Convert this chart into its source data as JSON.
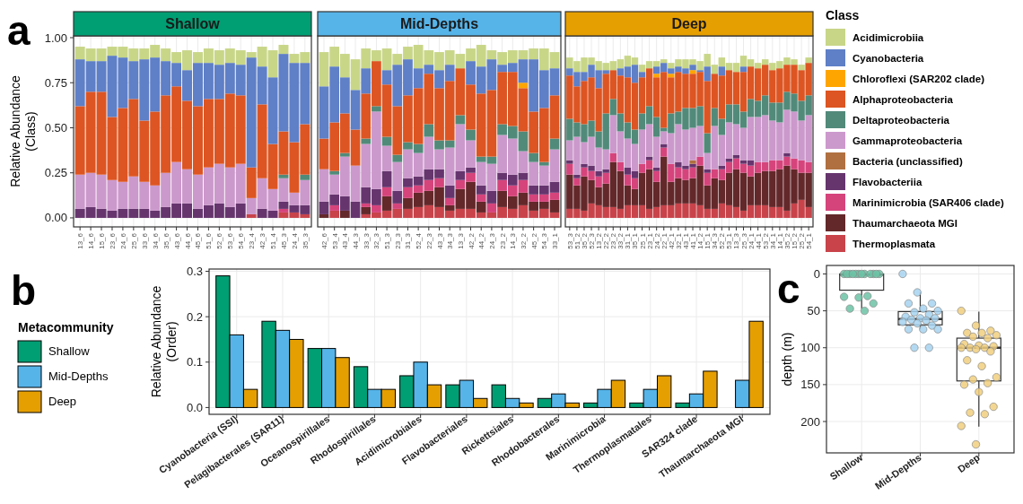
{
  "chart_data": [
    {
      "type": "bar",
      "stacked": true,
      "title": "Shallow",
      "ylabel": "Relative Abundance\n(Class)",
      "annotations": [
        "a"
      ],
      "grid": true,
      "legend": false,
      "categories": [
        "13_6",
        "14_6",
        "15_6",
        "23_6",
        "24_6",
        "25_6",
        "33_6",
        "34_6",
        "35_6",
        "43_6",
        "44_6",
        "45_6",
        "51_6",
        "52_6",
        "53_6",
        "54_6",
        "23_4",
        "42_3",
        "51_4",
        "45_3",
        "24_4",
        "35_3"
      ],
      "ylim": [
        -0.05,
        1.01
      ],
      "yticks": [
        {
          "value": 0,
          "label": "0.00"
        },
        {
          "value": 0.25,
          "label": "0.25"
        },
        {
          "value": 0.5,
          "label": "0.50"
        },
        {
          "value": 0.75,
          "label": "0.75"
        },
        {
          "value": 1,
          "label": "1.00"
        }
      ],
      "series": [
        {
          "color": "#c8434a",
          "values": [
            0,
            0,
            0,
            0,
            0,
            0,
            0,
            0,
            0,
            0,
            0,
            0,
            0,
            0,
            0,
            0,
            0.02,
            0,
            0,
            0.03,
            0.03,
            0.02
          ]
        },
        {
          "color": "#63282a",
          "values": [
            0,
            0,
            0,
            0,
            0,
            0,
            0,
            0,
            0,
            0,
            0,
            0,
            0,
            0,
            0,
            0,
            0,
            0,
            0,
            0,
            0,
            0
          ]
        },
        {
          "color": "#d6447c",
          "values": [
            0,
            0,
            0,
            0,
            0,
            0,
            0,
            0,
            0,
            0,
            0,
            0,
            0,
            0,
            0,
            0,
            0,
            0,
            0,
            0.02,
            0,
            0
          ]
        },
        {
          "color": "#66356e",
          "values": [
            0.05,
            0.06,
            0.05,
            0.04,
            0.05,
            0.05,
            0.05,
            0.04,
            0.06,
            0.08,
            0.08,
            0.05,
            0.07,
            0.08,
            0.06,
            0.08,
            0,
            0.05,
            0.04,
            0.04,
            0.04,
            0.05
          ]
        },
        {
          "color": "#b07040",
          "values": [
            0,
            0,
            0,
            0,
            0,
            0,
            0,
            0,
            0,
            0,
            0,
            0,
            0,
            0,
            0,
            0,
            0,
            0,
            0,
            0,
            0,
            0
          ]
        },
        {
          "color": "#cc99cc",
          "values": [
            0.19,
            0.19,
            0.19,
            0.17,
            0.15,
            0.18,
            0.15,
            0.14,
            0.19,
            0.23,
            0.19,
            0.19,
            0.21,
            0.22,
            0.22,
            0.22,
            0.09,
            0.17,
            0.12,
            0.13,
            0.07,
            0.14
          ]
        },
        {
          "color": "#528a7a",
          "values": [
            0,
            0,
            0,
            0,
            0,
            0,
            0,
            0,
            0,
            0,
            0,
            0,
            0,
            0,
            0,
            0,
            0,
            0,
            0,
            0.02,
            0,
            0.03
          ]
        },
        {
          "color": "#dd5522",
          "values": [
            0.38,
            0.45,
            0.46,
            0.35,
            0.41,
            0.43,
            0.34,
            0.41,
            0.43,
            0.42,
            0.38,
            0.38,
            0.38,
            0.36,
            0.41,
            0.38,
            0.17,
            0.41,
            0.25,
            0.24,
            0.28,
            0.28
          ]
        },
        {
          "color": "#ffa500",
          "values": [
            0,
            0,
            0,
            0,
            0,
            0,
            0,
            0,
            0,
            0,
            0,
            0,
            0,
            0,
            0,
            0,
            0,
            0,
            0,
            0,
            0,
            0
          ]
        },
        {
          "color": "#5f7fc7",
          "values": [
            0.26,
            0.17,
            0.17,
            0.34,
            0.28,
            0.21,
            0.34,
            0.3,
            0.19,
            0.13,
            0.17,
            0.24,
            0.2,
            0.19,
            0.17,
            0.17,
            0.61,
            0.21,
            0.37,
            0.43,
            0.44,
            0.34
          ]
        },
        {
          "color": "#c8d688",
          "values": [
            0.07,
            0.07,
            0.07,
            0.05,
            0.06,
            0.07,
            0.06,
            0.07,
            0.07,
            0.06,
            0.11,
            0.06,
            0.08,
            0.08,
            0.08,
            0.08,
            0.03,
            0.11,
            0.15,
            0.05,
            0.05,
            0.06
          ]
        }
      ]
    },
    {
      "type": "bar",
      "stacked": true,
      "title": "Mid-Depths",
      "grid": true,
      "legend": false,
      "tick_labels": "x",
      "categories": [
        "42_6",
        "53_4",
        "43_4",
        "44_3",
        "33_3",
        "32_3",
        "51_3",
        "23_3",
        "31_3",
        "52_4",
        "22_3",
        "43_3",
        "34_3",
        "13_3",
        "42_2",
        "44_2",
        "24_3",
        "23_2",
        "14_3",
        "32_2",
        "45_2",
        "54_3",
        "33_1"
      ],
      "ylim": [
        -0.05,
        1.01
      ],
      "yticks": [
        0,
        0.25,
        0.5,
        0.75,
        1
      ],
      "series": [
        {
          "color": "#c8434a",
          "values": [
            0,
            0.04,
            0,
            0,
            0.02,
            0.03,
            0.04,
            0.05,
            0.05,
            0.06,
            0.07,
            0.06,
            0.04,
            0.05,
            0.05,
            0.03,
            0.03,
            0.06,
            0.05,
            0.07,
            0.04,
            0.05,
            0.03
          ]
        },
        {
          "color": "#63282a",
          "values": [
            0.02,
            0,
            0.04,
            0,
            0.04,
            0,
            0.08,
            0,
            0.06,
            0.08,
            0.08,
            0.11,
            0.03,
            0.11,
            0.15,
            0.06,
            0,
            0.09,
            0.07,
            0.07,
            0.05,
            0.04,
            0.07
          ]
        },
        {
          "color": "#d6447c",
          "values": [
            0,
            0.03,
            0,
            0,
            0.02,
            0.04,
            0.05,
            0.03,
            0.06,
            0.04,
            0.06,
            0.05,
            0.04,
            0.05,
            0.05,
            0.04,
            0.05,
            0.06,
            0.06,
            0.07,
            0.04,
            0.04,
            0.04
          ]
        },
        {
          "color": "#66356e",
          "values": [
            0.07,
            0.06,
            0.08,
            0.09,
            0.09,
            0.09,
            0.09,
            0.07,
            0.05,
            0.05,
            0.06,
            0.05,
            0.07,
            0.05,
            0.03,
            0.05,
            0.07,
            0.04,
            0.06,
            0.04,
            0.05,
            0.05,
            0.06
          ]
        },
        {
          "color": "#b07040",
          "values": [
            0,
            0,
            0,
            0,
            0,
            0,
            0,
            0,
            0,
            0,
            0,
            0,
            0,
            0,
            0,
            0,
            0,
            0,
            0,
            0,
            0,
            0,
            0
          ]
        },
        {
          "color": "#cc99cc",
          "values": [
            0.18,
            0.11,
            0.22,
            0.2,
            0.24,
            0.43,
            0.14,
            0.16,
            0.16,
            0.13,
            0.18,
            0.11,
            0.21,
            0.26,
            0.15,
            0.13,
            0.15,
            0.21,
            0.2,
            0.12,
            0.13,
            0.11,
            0.18
          ]
        },
        {
          "color": "#528a7a",
          "values": [
            0,
            0.02,
            0.02,
            0,
            0.03,
            0.03,
            0.05,
            0.04,
            0.04,
            0.05,
            0.07,
            0.05,
            0.04,
            0.05,
            0.06,
            0.03,
            0.04,
            0.06,
            0.07,
            0.11,
            0.05,
            0.02,
            0.06
          ]
        },
        {
          "color": "#dd5522",
          "values": [
            0.17,
            0.27,
            0.22,
            0.2,
            0.25,
            0.25,
            0.29,
            0.27,
            0.26,
            0.31,
            0.28,
            0.29,
            0.33,
            0.26,
            0.25,
            0.35,
            0.37,
            0.29,
            0.3,
            0.24,
            0.23,
            0.3,
            0.24
          ]
        },
        {
          "color": "#ffa500",
          "values": [
            0,
            0,
            0,
            0,
            0,
            0,
            0,
            0,
            0,
            0,
            0,
            0,
            0,
            0,
            0,
            0,
            0,
            0,
            0,
            0.03,
            0,
            0,
            0
          ]
        },
        {
          "color": "#5f7fc7",
          "values": [
            0.29,
            0.31,
            0.2,
            0.22,
            0.14,
            0,
            0.08,
            0.23,
            0.2,
            0.11,
            0.05,
            0.1,
            0.09,
            0,
            0.13,
            0.15,
            0.17,
            0.04,
            0.05,
            0.13,
            0.29,
            0.21,
            0.15
          ]
        },
        {
          "color": "#c8d688",
          "values": [
            0.19,
            0.11,
            0.13,
            0.17,
            0.11,
            0.06,
            0.12,
            0.06,
            0.07,
            0.13,
            0.08,
            0.1,
            0.08,
            0.08,
            0.07,
            0.12,
            0.05,
            0.07,
            0.07,
            0.05,
            0.06,
            0.12,
            0.09
          ]
        }
      ]
    },
    {
      "type": "bar",
      "stacked": true,
      "title": "Deep",
      "grid": true,
      "legend": "right",
      "legend_title": "Class",
      "tick_labels": "x",
      "categories": [
        "53_3",
        "51_2",
        "35_2",
        "52_3",
        "13_2",
        "22_2",
        "23_2",
        "33_2",
        "31_1",
        "35_1",
        "25_1",
        "23_1",
        "24_2",
        "22_1",
        "42_1",
        "32_1",
        "43_1",
        "41_1",
        "14_2",
        "15_1",
        "34_3",
        "52_2",
        "53_1",
        "13_3",
        "25_3",
        "24_1",
        "44_1",
        "53_2",
        "34_1",
        "14_1",
        "35_2",
        "15_2",
        "25_2",
        "54_1"
      ],
      "ylim": [
        -0.05,
        1.01
      ],
      "yticks": [
        0,
        0.25,
        0.5,
        0.75,
        1
      ],
      "series": [
        {
          "name": "Thermoplasmata",
          "color": "#c8434a",
          "values": [
            0.05,
            0.05,
            0.04,
            0.08,
            0.07,
            0.06,
            0.06,
            0.05,
            0.07,
            0.07,
            0.07,
            0.05,
            0.06,
            0.07,
            0.07,
            0.08,
            0.08,
            0.08,
            0.07,
            0.05,
            0.05,
            0.08,
            0.07,
            0.06,
            0.04,
            0.07,
            0.07,
            0.07,
            0.06,
            0.06,
            0.04,
            0.08,
            0.1,
            0.06
          ]
        },
        {
          "name": "Thaumarchaeota MGI",
          "color": "#63282a",
          "values": [
            0.19,
            0.13,
            0.19,
            0.13,
            0.1,
            0.13,
            0.25,
            0.21,
            0.11,
            0.09,
            0.18,
            0.22,
            0.14,
            0.27,
            0.13,
            0.14,
            0.13,
            0.14,
            0.22,
            0.13,
            0.17,
            0.13,
            0.18,
            0.21,
            0.21,
            0.16,
            0.18,
            0.19,
            0.2,
            0.21,
            0.25,
            0.19,
            0.15,
            0.19
          ]
        },
        {
          "name": "Marinimicrobia (SAR406 clade)",
          "color": "#d6447c",
          "values": [
            0.06,
            0.04,
            0.05,
            0.05,
            0.06,
            0.06,
            0.05,
            0.05,
            0.06,
            0.06,
            0.05,
            0.05,
            0.06,
            0.05,
            0.1,
            0.06,
            0.06,
            0.06,
            0.05,
            0.07,
            0.05,
            0.06,
            0.06,
            0.06,
            0.05,
            0.06,
            0.06,
            0.05,
            0.06,
            0.05,
            0.05,
            0.06,
            0.07,
            0.06
          ]
        },
        {
          "name": "Flavobacteriia",
          "color": "#66356e",
          "values": [
            0.02,
            0.02,
            0.02,
            0.03,
            0.03,
            0.02,
            0,
            0,
            0.04,
            0.04,
            0,
            0.02,
            0.02,
            0.02,
            0,
            0.03,
            0.02,
            0.02,
            0,
            0.02,
            0,
            0.02,
            0.02,
            0.02,
            0.02,
            0.03,
            0,
            0,
            0,
            0,
            0.02,
            0,
            0,
            0
          ]
        },
        {
          "name": "Bacteria (unclassified)",
          "color": "#b07040",
          "values": [
            0,
            0,
            0,
            0,
            0,
            0,
            0,
            0,
            0,
            0,
            0,
            0,
            0,
            0,
            0,
            0,
            0,
            0.02,
            0,
            0,
            0,
            0,
            0,
            0,
            0,
            0,
            0,
            0,
            0,
            0,
            0,
            0,
            0,
            0
          ]
        },
        {
          "name": "Gammaproteobacteria",
          "color": "#cc99cc",
          "values": [
            0.11,
            0.21,
            0.12,
            0.16,
            0.13,
            0.11,
            0.21,
            0.17,
            0.16,
            0.15,
            0.19,
            0.18,
            0.17,
            0.07,
            0.17,
            0.21,
            0.2,
            0.18,
            0.17,
            0.09,
            0.24,
            0.17,
            0.2,
            0.17,
            0.18,
            0.24,
            0.25,
            0.26,
            0.22,
            0.21,
            0.24,
            0.26,
            0.22,
            0.26
          ]
        },
        {
          "name": "Deltaproteobacteria",
          "color": "#528a7a",
          "values": [
            0.12,
            0.08,
            0.1,
            0.09,
            0.09,
            0.2,
            0.09,
            0.1,
            0.09,
            0.08,
            0.09,
            0.1,
            0.11,
            0.02,
            0.11,
            0.07,
            0.12,
            0.11,
            0.11,
            0.11,
            0.1,
            0.09,
            0.1,
            0.11,
            0.09,
            0.1,
            0.09,
            0.11,
            0.1,
            0.11,
            0.1,
            0.1,
            0.11,
            0.11
          ]
        },
        {
          "name": "Alphaproteobacteria",
          "color": "#dd5522",
          "values": [
            0.24,
            0.2,
            0.24,
            0.24,
            0.24,
            0.22,
            0.16,
            0.21,
            0.25,
            0.26,
            0.2,
            0.21,
            0.22,
            0.31,
            0.2,
            0.22,
            0.19,
            0.19,
            0.19,
            0.29,
            0.19,
            0.24,
            0.19,
            0.18,
            0.22,
            0.18,
            0.18,
            0.17,
            0.18,
            0.19,
            0.15,
            0.16,
            0.17,
            0.18
          ]
        },
        {
          "name": "Chloroflexi (SAR202 clade)",
          "color": "#ffa500",
          "values": [
            0,
            0,
            0,
            0,
            0,
            0,
            0,
            0,
            0,
            0,
            0,
            0,
            0.02,
            0,
            0.02,
            0,
            0,
            0.02,
            0,
            0,
            0,
            0,
            0,
            0,
            0,
            0,
            0,
            0,
            0,
            0,
            0,
            0,
            0,
            0
          ]
        },
        {
          "name": "Cyanobacteria",
          "color": "#5f7fc7",
          "values": [
            0.04,
            0.08,
            0.05,
            0.07,
            0.1,
            0.02,
            0,
            0.04,
            0.06,
            0.1,
            0.03,
            0,
            0.04,
            0.05,
            0.03,
            0.03,
            0.03,
            0.03,
            0.01,
            0.08,
            0,
            0.05,
            0,
            0,
            0.03,
            0,
            0,
            0,
            0,
            0,
            0,
            0,
            0,
            0
          ]
        },
        {
          "name": "Acidimicrobiia",
          "color": "#c8d688",
          "values": [
            0.06,
            0.06,
            0.08,
            0.04,
            0.05,
            0.04,
            0.05,
            0.05,
            0.06,
            0.04,
            0.04,
            0.04,
            0.03,
            0.02,
            0.03,
            0.04,
            0.05,
            0.03,
            0.05,
            0.07,
            0.05,
            0.05,
            0.04,
            0.05,
            0.06,
            0.04,
            0.03,
            0.03,
            0.04,
            0.04,
            0.04,
            0.03,
            0.03,
            0.03
          ]
        }
      ]
    },
    {
      "type": "bar",
      "ylabel": "Relative Abundance\n(Order)",
      "annotations": [
        "b"
      ],
      "grid": true,
      "legend": "left",
      "legend_title": "Metacommunity",
      "categories": [
        "Cyanobacteria (SSI)",
        "Pelagibacterales (SAR11)",
        "Oceanospirillales",
        "Rhodospirillales",
        "Acidimicrobiales",
        "Flavobacteriales",
        "Rickettsiales",
        "Rhodobacterales",
        "Marinimicrobia",
        "Thermoplasmatales",
        "SAR324 clade",
        "Thaumarchaeota MGI"
      ],
      "ylim": [
        -0.015,
        0.305
      ],
      "yticks": [
        {
          "value": 0,
          "label": "0.0"
        },
        0.1,
        0.2,
        0.3
      ],
      "series": [
        {
          "name": "Shallow",
          "color": "#009e73",
          "values": [
            0.29,
            0.19,
            0.13,
            0.09,
            0.07,
            0.05,
            0.05,
            0.02,
            0.01,
            0.01,
            0.01,
            0
          ]
        },
        {
          "name": "Mid-Depths",
          "color": "#56b4e9",
          "values": [
            0.16,
            0.17,
            0.13,
            0.04,
            0.1,
            0.06,
            0.02,
            0.03,
            0.04,
            0.04,
            0.03,
            0.06
          ]
        },
        {
          "name": "Deep",
          "color": "#e69f00",
          "values": [
            0.04,
            0.15,
            0.11,
            0.04,
            0.05,
            0.02,
            0.01,
            0.01,
            0.06,
            0.07,
            0.08,
            0.19
          ]
        }
      ]
    },
    {
      "type": "box",
      "ylabel": "depth (m)",
      "annotations": [
        "c"
      ],
      "grid": true,
      "categories": [
        "Shallow",
        "Mid-Depths",
        "Deep"
      ],
      "ylim": [
        242.5,
        -11.5
      ],
      "yticks": [
        0,
        50,
        100,
        150,
        200
      ],
      "boxes": [
        {
          "low": 0,
          "q1": 0,
          "median": 1,
          "q3": 22,
          "high": 47
        },
        {
          "low": 25,
          "q1": 51,
          "median": 61,
          "q3": 69,
          "high": 75
        },
        {
          "low": 51,
          "q1": 87,
          "median": 100,
          "q3": 145,
          "high": 207
        }
      ],
      "series": [
        {
          "type": "scatter",
          "color": "#6cc3a6",
          "x": [
            "Shallow",
            "Shallow",
            "Shallow",
            "Shallow",
            "Shallow",
            "Shallow",
            "Shallow",
            "Shallow",
            "Shallow",
            "Shallow",
            "Shallow",
            "Shallow",
            "Shallow",
            "Shallow",
            "Shallow",
            "Shallow",
            "Shallow",
            "Shallow"
          ],
          "values": [
            0,
            0,
            0,
            0,
            0,
            0,
            0,
            0,
            0,
            0,
            0,
            0,
            30,
            31,
            32,
            40,
            47,
            50
          ]
        },
        {
          "type": "scatter",
          "color": "#a6d4f0",
          "x": [
            "Mid-Depths",
            "Mid-Depths",
            "Mid-Depths",
            "Mid-Depths",
            "Mid-Depths",
            "Mid-Depths",
            "Mid-Depths",
            "Mid-Depths",
            "Mid-Depths",
            "Mid-Depths",
            "Mid-Depths",
            "Mid-Depths",
            "Mid-Depths",
            "Mid-Depths",
            "Mid-Depths",
            "Mid-Depths",
            "Mid-Depths",
            "Mid-Depths",
            "Mid-Depths",
            "Mid-Depths",
            "Mid-Depths"
          ],
          "values": [
            0,
            25,
            40,
            40,
            47,
            50,
            52,
            55,
            58,
            60,
            60,
            62,
            63,
            65,
            67,
            70,
            75,
            75,
            75,
            100,
            100
          ]
        },
        {
          "type": "scatter",
          "color": "#f1cf7e",
          "x": [
            "Deep",
            "Deep",
            "Deep",
            "Deep",
            "Deep",
            "Deep",
            "Deep",
            "Deep",
            "Deep",
            "Deep",
            "Deep",
            "Deep",
            "Deep",
            "Deep",
            "Deep",
            "Deep",
            "Deep",
            "Deep",
            "Deep",
            "Deep",
            "Deep",
            "Deep",
            "Deep",
            "Deep",
            "Deep",
            "Deep",
            "Deep",
            "Deep"
          ],
          "values": [
            50,
            70,
            77,
            80,
            80,
            83,
            85,
            87,
            95,
            97,
            98,
            100,
            100,
            100,
            102,
            105,
            117,
            125,
            140,
            143,
            148,
            150,
            160,
            180,
            188,
            190,
            206,
            231
          ]
        }
      ]
    }
  ]
}
